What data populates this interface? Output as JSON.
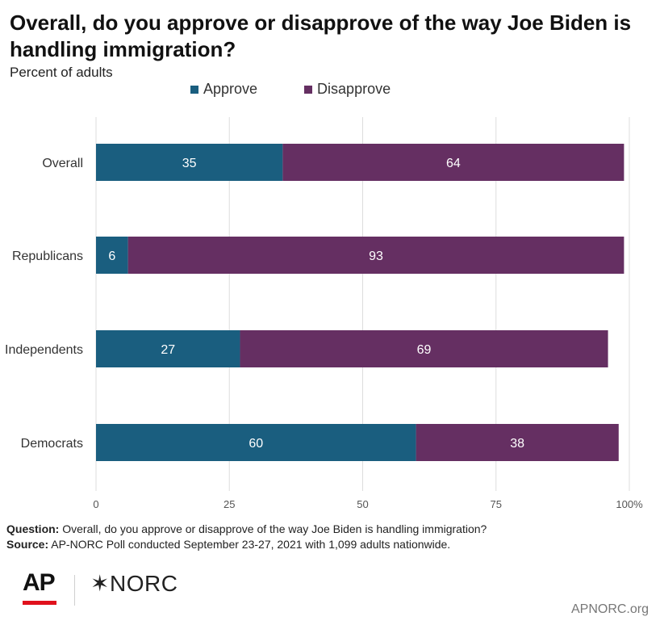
{
  "title": "Overall, do you approve or disapprove of the way Joe Biden is handling immigration?",
  "subtitle": "Percent of adults",
  "colors": {
    "approve": "#1a5e7f",
    "disapprove": "#652f62"
  },
  "chart_data": {
    "type": "bar",
    "orientation": "horizontal",
    "stacked": true,
    "categories": [
      "Overall",
      "Republicans",
      "Independents",
      "Democrats"
    ],
    "series": [
      {
        "name": "Approve",
        "values": [
          35,
          6,
          27,
          60
        ]
      },
      {
        "name": "Disapprove",
        "values": [
          64,
          93,
          69,
          38
        ]
      }
    ],
    "xlim": [
      0,
      100
    ],
    "xticks": [
      "0",
      "25",
      "50",
      "75",
      "100%"
    ],
    "xtick_values": [
      0,
      25,
      50,
      75,
      100
    ],
    "grid": true,
    "legend_position": "top"
  },
  "notes": {
    "question_label": "Question:",
    "question_text": " Overall, do you approve or disapprove of the way Joe Biden is handling immigration?",
    "source_label": "Source:",
    "source_text": " AP-NORC Poll conducted September 23-27, 2021 with 1,099 adults nationwide."
  },
  "branding": {
    "ap_logo": "AP",
    "norc_logo": "NORC",
    "norc_icon": "asterisk-star-icon",
    "site": "APNORC.org"
  }
}
